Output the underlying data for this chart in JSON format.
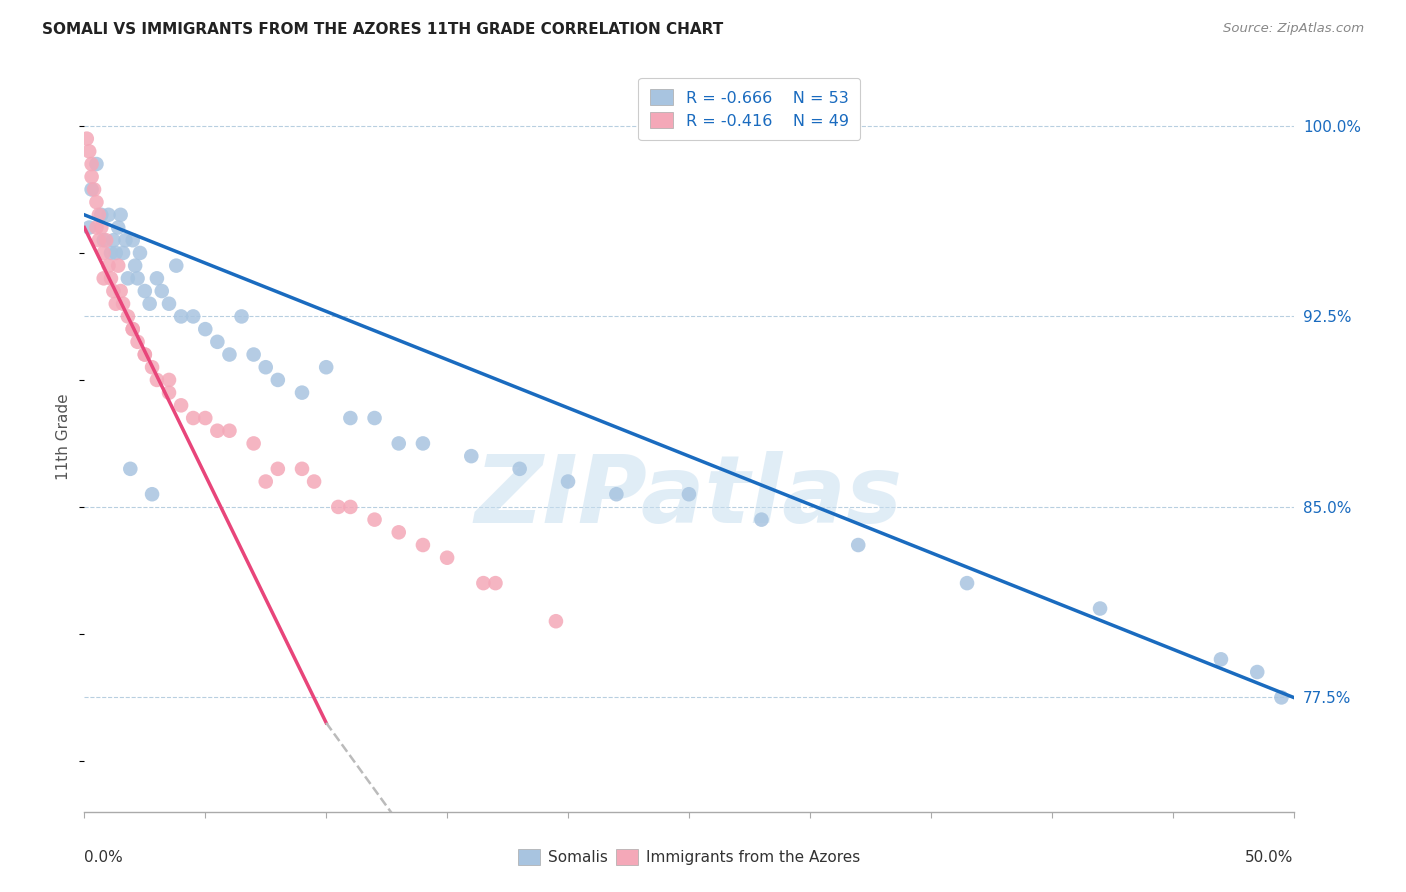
{
  "title": "SOMALI VS IMMIGRANTS FROM THE AZORES 11TH GRADE CORRELATION CHART",
  "source": "Source: ZipAtlas.com",
  "ylabel": "11th Grade",
  "yaxis_labels": [
    "100.0%",
    "92.5%",
    "85.0%",
    "77.5%"
  ],
  "yaxis_values": [
    100.0,
    92.5,
    85.0,
    77.5
  ],
  "xlim": [
    0.0,
    50.0
  ],
  "ylim": [
    73.0,
    102.5
  ],
  "legend_r_blue": "R = -0.666",
  "legend_n_blue": "N = 53",
  "legend_r_pink": "R = -0.416",
  "legend_n_pink": "N = 49",
  "blue_color": "#a8c4e0",
  "pink_color": "#f4a8b8",
  "blue_line_color": "#1a6bbf",
  "pink_line_color": "#e8457a",
  "watermark": "ZIPatlas",
  "blue_line": [
    0.0,
    96.5,
    50.0,
    77.5
  ],
  "pink_line_solid": [
    0.0,
    96.0,
    10.0,
    76.5
  ],
  "pink_line_dash": [
    10.0,
    76.5,
    18.0,
    66.0
  ],
  "blue_scatter_x": [
    0.2,
    0.3,
    0.5,
    0.7,
    0.8,
    1.0,
    1.1,
    1.2,
    1.3,
    1.4,
    1.5,
    1.6,
    1.7,
    1.8,
    2.0,
    2.1,
    2.2,
    2.3,
    2.5,
    2.7,
    3.0,
    3.2,
    3.5,
    3.8,
    4.0,
    4.5,
    5.0,
    5.5,
    6.0,
    6.5,
    7.0,
    7.5,
    8.0,
    9.0,
    10.0,
    11.0,
    12.0,
    13.0,
    14.0,
    16.0,
    18.0,
    20.0,
    22.0,
    25.0,
    28.0,
    32.0,
    36.5,
    42.0,
    47.0,
    48.5,
    49.5,
    1.9,
    2.8
  ],
  "blue_scatter_y": [
    96.0,
    97.5,
    98.5,
    96.5,
    95.5,
    96.5,
    95.0,
    95.5,
    95.0,
    96.0,
    96.5,
    95.0,
    95.5,
    94.0,
    95.5,
    94.5,
    94.0,
    95.0,
    93.5,
    93.0,
    94.0,
    93.5,
    93.0,
    94.5,
    92.5,
    92.5,
    92.0,
    91.5,
    91.0,
    92.5,
    91.0,
    90.5,
    90.0,
    89.5,
    90.5,
    88.5,
    88.5,
    87.5,
    87.5,
    87.0,
    86.5,
    86.0,
    85.5,
    85.5,
    84.5,
    83.5,
    82.0,
    81.0,
    79.0,
    78.5,
    77.5,
    86.5,
    85.5
  ],
  "pink_scatter_x": [
    0.1,
    0.2,
    0.3,
    0.4,
    0.5,
    0.6,
    0.7,
    0.8,
    0.9,
    1.0,
    1.1,
    1.2,
    1.3,
    1.4,
    1.6,
    1.8,
    2.0,
    2.2,
    2.5,
    2.8,
    3.0,
    3.5,
    4.0,
    5.0,
    6.0,
    7.0,
    8.0,
    9.5,
    11.0,
    13.0,
    15.0,
    17.0,
    19.5,
    0.5,
    0.6,
    0.8,
    1.5,
    2.0,
    2.5,
    3.5,
    4.5,
    5.5,
    7.5,
    9.0,
    10.5,
    12.0,
    14.0,
    16.5,
    0.3
  ],
  "pink_scatter_y": [
    99.5,
    99.0,
    98.0,
    97.5,
    97.0,
    96.5,
    96.0,
    95.0,
    95.5,
    94.5,
    94.0,
    93.5,
    93.0,
    94.5,
    93.0,
    92.5,
    92.0,
    91.5,
    91.0,
    90.5,
    90.0,
    89.5,
    89.0,
    88.5,
    88.0,
    87.5,
    86.5,
    86.0,
    85.0,
    84.0,
    83.0,
    82.0,
    80.5,
    96.0,
    95.5,
    94.0,
    93.5,
    92.0,
    91.0,
    90.0,
    88.5,
    88.0,
    86.0,
    86.5,
    85.0,
    84.5,
    83.5,
    82.0,
    98.5
  ]
}
